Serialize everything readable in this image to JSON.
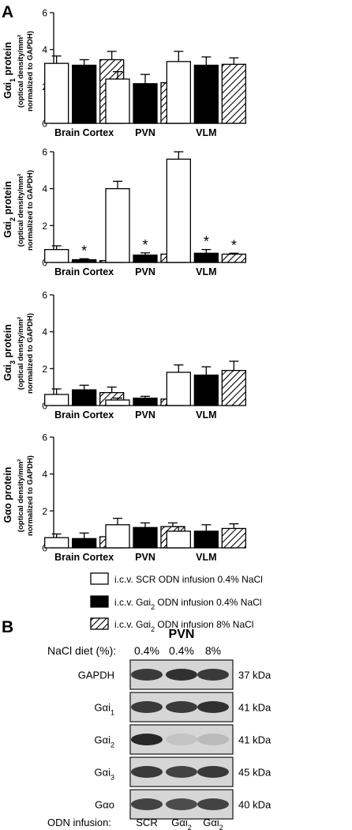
{
  "panel_a_label": "A",
  "panel_b_label": "B",
  "colors": {
    "scr": "#ffffff",
    "gai2_04": "#000000",
    "gai2_8": "hatched",
    "stroke": "#000000",
    "blot_bg": "#d6d6d6",
    "band": "#1e1e1e"
  },
  "chart_data": [
    {
      "type": "bar",
      "ylabel_main": "Gαi",
      "ylabel_sub": "1",
      "ylabel_tail": " protein",
      "ylabel_line2": "(optical density/mm²",
      "ylabel_line3": "normalized to GAPDH)",
      "categories": [
        "Brain Cortex",
        "PVN",
        "VLM"
      ],
      "ylim": [
        0,
        6
      ],
      "yticks": [
        0,
        2,
        4,
        6
      ],
      "series": [
        {
          "values": [
            3.25,
            2.4,
            3.35
          ],
          "errors": [
            0.4,
            0.4,
            0.55
          ]
        },
        {
          "values": [
            3.15,
            2.15,
            3.15
          ],
          "errors": [
            0.3,
            0.5,
            0.45
          ]
        },
        {
          "values": [
            3.45,
            2.2,
            3.2
          ],
          "errors": [
            0.45,
            0.6,
            0.35
          ]
        }
      ],
      "significant": [
        [
          false,
          false,
          false
        ],
        [
          false,
          false,
          false
        ],
        [
          false,
          false,
          false
        ]
      ]
    },
    {
      "type": "bar",
      "ylabel_main": "Gαi",
      "ylabel_sub": "2",
      "ylabel_tail": " protein",
      "ylabel_line2": "(optical density/mm²",
      "ylabel_line3": "normalized to GAPDH)",
      "categories": [
        "Brain Cortex",
        "PVN",
        "VLM"
      ],
      "ylim": [
        0,
        6
      ],
      "yticks": [
        0,
        2,
        4,
        6
      ],
      "series": [
        {
          "values": [
            0.7,
            4.0,
            5.6
          ],
          "errors": [
            0.2,
            0.4,
            0.4
          ]
        },
        {
          "values": [
            0.15,
            0.4,
            0.5
          ],
          "errors": [
            0.05,
            0.12,
            0.2
          ]
        },
        {
          "values": [
            0.1,
            0.45,
            0.45
          ],
          "errors": [
            0.05,
            0.1,
            0.05
          ]
        }
      ],
      "significant": [
        [
          false,
          false,
          false
        ],
        [
          true,
          true,
          true
        ],
        [
          true,
          true,
          true
        ]
      ],
      "significance_mark": "*"
    },
    {
      "type": "bar",
      "ylabel_main": "Gαi",
      "ylabel_sub": "3",
      "ylabel_tail": " protein",
      "ylabel_line2": "(optical density/mm²",
      "ylabel_line3": "normalized to GAPDH)",
      "categories": [
        "Brain Cortex",
        "PVN",
        "VLM"
      ],
      "ylim": [
        0,
        6
      ],
      "yticks": [
        0,
        2,
        4,
        6
      ],
      "series": [
        {
          "values": [
            0.6,
            0.3,
            1.8
          ],
          "errors": [
            0.3,
            0.1,
            0.4
          ]
        },
        {
          "values": [
            0.85,
            0.4,
            1.65
          ],
          "errors": [
            0.25,
            0.1,
            0.45
          ]
        },
        {
          "values": [
            0.7,
            0.35,
            1.9
          ],
          "errors": [
            0.3,
            0.1,
            0.5
          ]
        }
      ],
      "significant": [
        [
          false,
          false,
          false
        ],
        [
          false,
          false,
          false
        ],
        [
          false,
          false,
          false
        ]
      ]
    },
    {
      "type": "bar",
      "ylabel_main": "Gαo",
      "ylabel_sub": "",
      "ylabel_tail": " protein",
      "ylabel_line2": "(optical density/mm²",
      "ylabel_line3": "normalized to GAPDH)",
      "categories": [
        "Brain Cortex",
        "PVN",
        "VLM"
      ],
      "ylim": [
        0,
        6
      ],
      "yticks": [
        0,
        2,
        4,
        6
      ],
      "series": [
        {
          "values": [
            0.55,
            1.25,
            0.9
          ],
          "errors": [
            0.2,
            0.35,
            0.25
          ]
        },
        {
          "values": [
            0.5,
            1.1,
            0.9
          ],
          "errors": [
            0.3,
            0.25,
            0.35
          ]
        },
        {
          "values": [
            0.6,
            1.15,
            1.05
          ],
          "errors": [
            0.35,
            0.2,
            0.25
          ]
        }
      ],
      "significant": [
        [
          false,
          false,
          false
        ],
        [
          false,
          false,
          false
        ],
        [
          false,
          false,
          false
        ]
      ]
    }
  ],
  "legend": [
    {
      "prefix": "i.c.v. SCR ODN infusion 0.4% NaCl",
      "sub": "",
      "suffix": ""
    },
    {
      "prefix": "i.c.v. Gαi",
      "sub": "2",
      "suffix": " ODN infusion 0.4% NaCl"
    },
    {
      "prefix": "i.c.v. Gαi",
      "sub": "2",
      "suffix": " ODN infusion 8% NaCl"
    }
  ],
  "blot": {
    "region": "PVN",
    "diet_label": "NaCl diet (%):",
    "diet_values": [
      "0.4%",
      "0.4%",
      "8%"
    ],
    "rows": [
      {
        "main": "GAPDH",
        "sub": "",
        "kda": "37 kDa",
        "intensity": [
          0.85,
          0.9,
          0.85
        ]
      },
      {
        "main": "Gαi",
        "sub": "1",
        "kda": "41 kDa",
        "intensity": [
          0.85,
          0.85,
          0.9
        ]
      },
      {
        "main": "Gαi",
        "sub": "2",
        "kda": "41 kDa",
        "intensity": [
          0.95,
          0.1,
          0.15
        ]
      },
      {
        "main": "Gαi",
        "sub": "3",
        "kda": "45 kDa",
        "intensity": [
          0.85,
          0.8,
          0.85
        ]
      },
      {
        "main": "Gαo",
        "sub": "",
        "kda": "40 kDa",
        "intensity": [
          0.8,
          0.75,
          0.8
        ]
      }
    ],
    "odn_label": "ODN infusion:",
    "odn_values": [
      {
        "main": "SCR",
        "sub": ""
      },
      {
        "main": "Gαi",
        "sub": "2"
      },
      {
        "main": "Gαi",
        "sub": "2"
      }
    ]
  }
}
